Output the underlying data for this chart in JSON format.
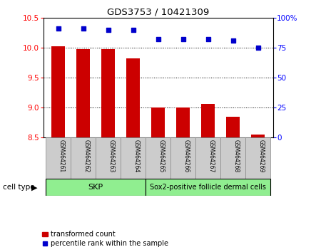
{
  "title": "GDS3753 / 10421309",
  "categories": [
    "GSM464261",
    "GSM464262",
    "GSM464263",
    "GSM464264",
    "GSM464265",
    "GSM464266",
    "GSM464267",
    "GSM464268",
    "GSM464269"
  ],
  "transformed_count": [
    10.02,
    9.97,
    9.97,
    9.82,
    9.0,
    9.0,
    9.06,
    8.84,
    8.55
  ],
  "percentile_rank": [
    91,
    91,
    90,
    90,
    82,
    82,
    82,
    81,
    75
  ],
  "bar_bottom": 8.5,
  "ylim_left": [
    8.5,
    10.5
  ],
  "ylim_right": [
    0,
    100
  ],
  "yticks_left": [
    8.5,
    9.0,
    9.5,
    10.0,
    10.5
  ],
  "yticks_right": [
    0,
    25,
    50,
    75,
    100
  ],
  "bar_color": "#cc0000",
  "dot_color": "#0000cc",
  "skp_color": "#90ee90",
  "sox2_color": "#90ee90",
  "xlabel_area_color": "#cccccc",
  "cell_type_label": "cell type",
  "legend_bar_label": "transformed count",
  "legend_dot_label": "percentile rank within the sample",
  "bar_width": 0.55,
  "skp_samples": [
    0,
    1,
    2,
    3
  ],
  "sox2_samples": [
    4,
    5,
    6,
    7,
    8
  ],
  "skp_label": "SKP",
  "sox2_label": "Sox2-positive follicle dermal cells"
}
